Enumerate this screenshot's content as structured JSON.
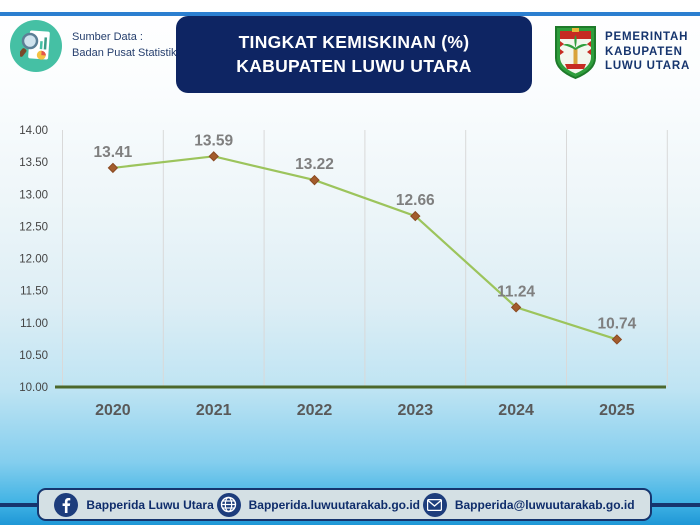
{
  "header": {
    "source_label": "Sumber Data :",
    "source_name": "Badan Pusat Statistik",
    "title_line1": "TINGKAT KEMISKINAN (%)",
    "title_line2": "KABUPATEN LUWU UTARA",
    "gov_line1": "PEMERINTAH",
    "gov_line2": "KABUPATEN",
    "gov_line3": "LUWU UTARA"
  },
  "chart_data": {
    "type": "line",
    "title": "TINGKAT KEMISKINAN (%) KABUPATEN LUWU UTARA",
    "categories": [
      "2020",
      "2021",
      "2022",
      "2023",
      "2024",
      "2025"
    ],
    "series": [
      {
        "name": "Tingkat Kemiskinan (%)",
        "values": [
          13.41,
          13.59,
          13.22,
          12.66,
          11.24,
          10.74
        ]
      }
    ],
    "data_labels": [
      "13.41",
      "13.59",
      "13.22",
      "12.66",
      "11.24",
      "10.74"
    ],
    "ylim": [
      10.0,
      14.0
    ],
    "ytick_step": 0.5,
    "ytick_labels": [
      "10.00",
      "10.50",
      "11.00",
      "11.50",
      "12.00",
      "12.50",
      "13.00",
      "13.50",
      "14.00"
    ],
    "xlabel": "",
    "ylabel": "",
    "grid": "vertical-only",
    "legend": "none",
    "colors": {
      "line": "#9cc45c",
      "marker": "#a35c2c",
      "marker_stroke": "#8a4a22",
      "axis_line": "#4c682c",
      "gridline": "#d9d9d9",
      "data_label": "#7f7f7f",
      "x_tick": "#595959",
      "y_tick": "#444444"
    }
  },
  "footer": {
    "facebook_label": "Bapperida Luwu Utara",
    "website_label": "Bapperida.luwuutarakab.go.id",
    "email_label": "Bapperida@luwuutarakab.go.id"
  },
  "brand_colors": {
    "navy": "#0e2563",
    "accent_blue": "#2b7fd0",
    "teal": "#45c0a4",
    "footer_blue": "#1f97d6"
  }
}
